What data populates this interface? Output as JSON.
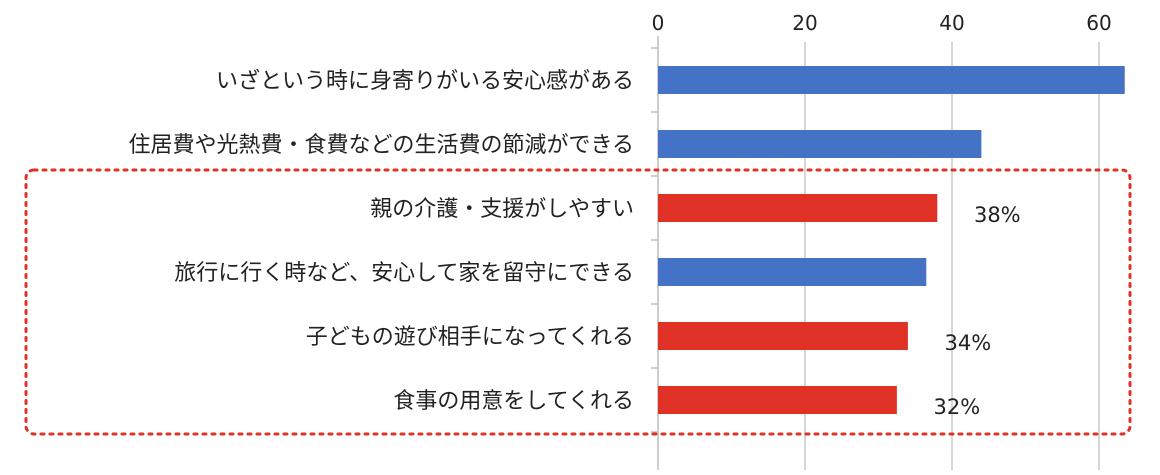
{
  "chart_data": {
    "type": "bar",
    "orientation": "horizontal",
    "categories": [
      "いざという時に身寄りがいる安心感がある",
      "住居費や光熱費・食費などの生活費の節減ができる",
      "親の介護・支援がしやすい",
      "旅行に行く時など、安心して家を留守にできる",
      "子どもの遊び相手になってくれる",
      "食事の用意をしてくれる"
    ],
    "values": [
      63.5,
      44,
      38,
      36.5,
      34,
      32.5
    ],
    "bar_colors": [
      "#4472c4",
      "#4472c4",
      "#e03126",
      "#4472c4",
      "#e03126",
      "#e03126"
    ],
    "data_labels": [
      "",
      "",
      "38%",
      "",
      "34%",
      "32%"
    ],
    "x_ticks": [
      "0",
      "20",
      "40",
      "60"
    ],
    "xlim": [
      0,
      65
    ],
    "x_axis_position": "top",
    "grid": true,
    "highlight_box": {
      "color": "#e03126",
      "style": "dotted",
      "categories_from": 2,
      "categories_to": 5
    }
  }
}
